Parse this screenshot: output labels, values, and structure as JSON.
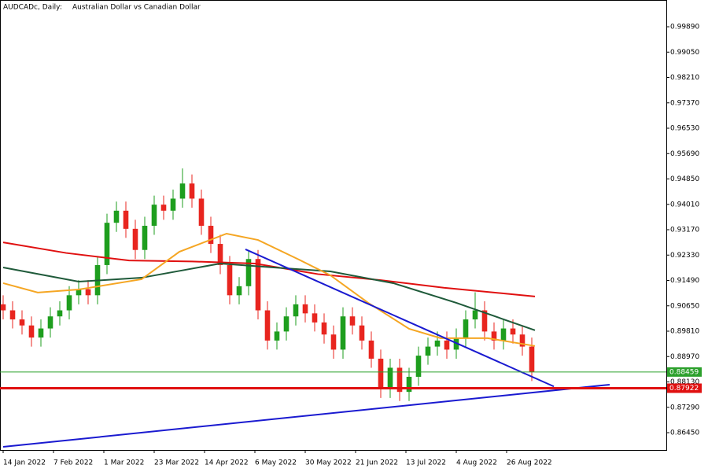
{
  "chart_data": {
    "type": "candlestick",
    "title": "AUDCADc, Daily:",
    "subtitle": "Australian Dollar vs Canadian Dollar",
    "up_color": "#1e9e1e",
    "down_color": "#e8251f",
    "x": [
      0,
      3,
      6,
      9,
      12,
      15,
      18,
      21,
      24,
      27,
      30,
      33,
      36,
      39,
      42,
      45,
      48,
      51,
      54,
      57,
      60,
      63,
      66,
      69,
      72,
      75,
      78,
      81,
      84,
      87,
      90,
      93,
      96,
      99,
      102,
      105,
      108,
      111,
      114,
      117,
      120,
      123,
      126,
      129,
      132,
      135,
      138,
      141,
      144,
      147,
      150,
      153,
      156,
      159,
      162,
      165,
      168
    ],
    "open": [
      0.907,
      0.905,
      0.902,
      0.9,
      0.896,
      0.899,
      0.903,
      0.905,
      0.91,
      0.912,
      0.91,
      0.92,
      0.934,
      0.938,
      0.932,
      0.925,
      0.933,
      0.94,
      0.938,
      0.942,
      0.947,
      0.942,
      0.933,
      0.927,
      0.92,
      0.91,
      0.913,
      0.922,
      0.905,
      0.895,
      0.898,
      0.903,
      0.907,
      0.904,
      0.901,
      0.897,
      0.892,
      0.903,
      0.9,
      0.895,
      0.889,
      0.879,
      0.886,
      0.878,
      0.883,
      0.89,
      0.893,
      0.895,
      0.892,
      0.896,
      0.902,
      0.905,
      0.898,
      0.895,
      0.899,
      0.897,
      0.893
    ],
    "high": [
      0.91,
      0.908,
      0.905,
      0.903,
      0.902,
      0.906,
      0.908,
      0.913,
      0.915,
      0.915,
      0.923,
      0.937,
      0.941,
      0.941,
      0.935,
      0.936,
      0.943,
      0.943,
      0.945,
      0.952,
      0.95,
      0.945,
      0.936,
      0.93,
      0.923,
      0.916,
      0.925,
      0.925,
      0.908,
      0.901,
      0.906,
      0.91,
      0.91,
      0.907,
      0.904,
      0.9,
      0.906,
      0.906,
      0.903,
      0.898,
      0.892,
      0.889,
      0.889,
      0.886,
      0.893,
      0.896,
      0.898,
      0.898,
      0.899,
      0.905,
      0.911,
      0.908,
      0.901,
      0.902,
      0.902,
      0.9,
      0.896
    ],
    "low": [
      0.902,
      0.899,
      0.897,
      0.893,
      0.893,
      0.896,
      0.9,
      0.902,
      0.907,
      0.907,
      0.907,
      0.917,
      0.931,
      0.929,
      0.922,
      0.922,
      0.93,
      0.935,
      0.935,
      0.939,
      0.939,
      0.93,
      0.924,
      0.917,
      0.907,
      0.907,
      0.91,
      0.902,
      0.892,
      0.892,
      0.895,
      0.9,
      0.901,
      0.898,
      0.894,
      0.889,
      0.889,
      0.897,
      0.892,
      0.886,
      0.876,
      0.876,
      0.875,
      0.875,
      0.88,
      0.887,
      0.89,
      0.889,
      0.889,
      0.893,
      0.899,
      0.895,
      0.892,
      0.892,
      0.894,
      0.89,
      0.8816
    ],
    "close": [
      0.905,
      0.902,
      0.9,
      0.896,
      0.899,
      0.903,
      0.905,
      0.91,
      0.912,
      0.91,
      0.92,
      0.934,
      0.938,
      0.932,
      0.925,
      0.933,
      0.94,
      0.938,
      0.942,
      0.947,
      0.942,
      0.933,
      0.927,
      0.92,
      0.91,
      0.913,
      0.922,
      0.905,
      0.895,
      0.898,
      0.903,
      0.907,
      0.904,
      0.901,
      0.897,
      0.892,
      0.903,
      0.9,
      0.895,
      0.889,
      0.879,
      0.886,
      0.878,
      0.883,
      0.89,
      0.893,
      0.895,
      0.892,
      0.896,
      0.902,
      0.905,
      0.898,
      0.895,
      0.899,
      0.897,
      0.893,
      0.8846
    ],
    "lines": [
      {
        "color": "#e01010",
        "width": 2,
        "x": [
          0,
          20,
          40,
          60,
          80,
          100,
          120,
          140,
          160,
          169
        ],
        "values": [
          0.9275,
          0.924,
          0.9215,
          0.9212,
          0.9205,
          0.917,
          0.915,
          0.9125,
          0.9105,
          0.9096
        ]
      },
      {
        "color": "#1f5a3a",
        "width": 2,
        "x": [
          0,
          24,
          44,
          69,
          86,
          104,
          124,
          144,
          169
        ],
        "values": [
          0.9192,
          0.9145,
          0.9158,
          0.9205,
          0.9192,
          0.9179,
          0.914,
          0.9075,
          0.8984
        ]
      },
      {
        "color": "#f5a623",
        "width": 2,
        "x": [
          0,
          11,
          24,
          44,
          56,
          71,
          81,
          94,
          104,
          116,
          129,
          139,
          154,
          169
        ],
        "values": [
          0.914,
          0.9109,
          0.9119,
          0.9153,
          0.9244,
          0.9304,
          0.9283,
          0.9218,
          0.9166,
          0.9075,
          0.8989,
          0.8958,
          0.8958,
          0.8932
        ]
      },
      {
        "color": "#1a1ad0",
        "width": 2,
        "x": [
          77,
          175
        ],
        "values": [
          0.9252,
          0.8798
        ]
      },
      {
        "color": "#1a1ad0",
        "width": 2,
        "x": [
          0,
          192.75
        ],
        "values": [
          0.8598,
          0.8804
        ]
      }
    ],
    "hlines": [
      {
        "value": 0.88459,
        "color": "#2ca02c",
        "width": 1
      },
      {
        "value": 0.87922,
        "color": "#e01010",
        "width": 3
      }
    ],
    "xlim": [
      -1,
      210.75
    ],
    "ylim": [
      0.85877,
      1.00776
    ],
    "yticks": [
      {
        "value": 0.9989,
        "label": "0.99890"
      },
      {
        "value": 0.9905,
        "label": "0.99050"
      },
      {
        "value": 0.9821,
        "label": "0.98210"
      },
      {
        "value": 0.9737,
        "label": "0.97370"
      },
      {
        "value": 0.9653,
        "label": "0.96530"
      },
      {
        "value": 0.9569,
        "label": "0.95690"
      },
      {
        "value": 0.9485,
        "label": "0.94850"
      },
      {
        "value": 0.9401,
        "label": "0.94010"
      },
      {
        "value": 0.9317,
        "label": "0.93170"
      },
      {
        "value": 0.9233,
        "label": "0.92330"
      },
      {
        "value": 0.9149,
        "label": "0.91490"
      },
      {
        "value": 0.9065,
        "label": "0.90650"
      },
      {
        "value": 0.8981,
        "label": "0.89810"
      },
      {
        "value": 0.8897,
        "label": "0.88970"
      },
      {
        "value": 0.8813,
        "label": "0.88130"
      },
      {
        "value": 0.8729,
        "label": "0.87290"
      },
      {
        "value": 0.8645,
        "label": "0.86450"
      }
    ],
    "xticks": [
      {
        "value": 0,
        "label": "14 Jan 2022"
      },
      {
        "value": 16,
        "label": "7 Feb 2022"
      },
      {
        "value": 32,
        "label": "1 Mar 2022"
      },
      {
        "value": 48,
        "label": "23 Mar 2022"
      },
      {
        "value": 64,
        "label": "14 Apr 2022"
      },
      {
        "value": 80,
        "label": "6 May 2022"
      },
      {
        "value": 96,
        "label": "30 May 2022"
      },
      {
        "value": 112,
        "label": "21 Jun 2022"
      },
      {
        "value": 128,
        "label": "13 Jul 2022"
      },
      {
        "value": 144,
        "label": "4 Aug 2022"
      },
      {
        "value": 160,
        "label": "26 Aug 2022"
      }
    ]
  }
}
